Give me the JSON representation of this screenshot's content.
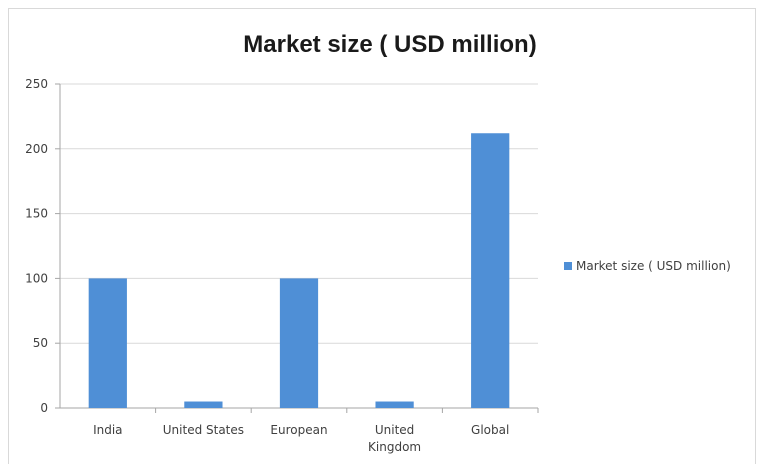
{
  "chart_data": {
    "type": "bar",
    "title": "Market size ( USD million)",
    "xlabel": "",
    "ylabel": "",
    "categories": [
      "India",
      "United States",
      "European",
      "United Kingdom",
      "Global"
    ],
    "category_lines": [
      [
        "India"
      ],
      [
        "United States"
      ],
      [
        "European"
      ],
      [
        "United",
        "Kingdom"
      ],
      [
        "Global"
      ]
    ],
    "series": [
      {
        "name": "Market size ( USD million)",
        "values": [
          100,
          5,
          100,
          5,
          212
        ],
        "color": "#4f8fd6"
      }
    ],
    "ylim": [
      0,
      250
    ],
    "yticks": [
      0,
      50,
      100,
      150,
      200,
      250
    ],
    "grid": true,
    "legend_position": "right",
    "gridline_color": "#d9d9d9",
    "axis_color": "#a6a6a6"
  }
}
